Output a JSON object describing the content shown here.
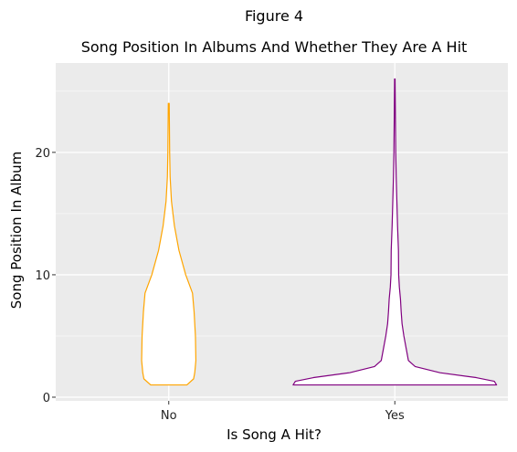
{
  "figure_label": "Figure 4",
  "chart_data": {
    "type": "violin",
    "title": "Song Position In Albums And Whether They Are A Hit",
    "xlabel": "Is Song A Hit?",
    "ylabel": "Song Position In Album",
    "categories": [
      "No",
      "Yes"
    ],
    "ylim": [
      -0.3,
      27.3
    ],
    "yticks": [
      0,
      10,
      20
    ],
    "grid": true,
    "background": "#ebebeb",
    "series": [
      {
        "category": "No",
        "color": "#ffa500",
        "fill": "#ffffff",
        "range": [
          1,
          24
        ],
        "density_profile": [
          [
            1,
            0.08
          ],
          [
            1.5,
            0.11
          ],
          [
            2,
            0.115
          ],
          [
            3,
            0.12
          ],
          [
            5,
            0.118
          ],
          [
            7,
            0.112
          ],
          [
            8.5,
            0.105
          ],
          [
            10,
            0.075
          ],
          [
            12,
            0.045
          ],
          [
            14,
            0.025
          ],
          [
            16,
            0.012
          ],
          [
            18,
            0.006
          ],
          [
            20,
            0.004
          ],
          [
            22,
            0.003
          ],
          [
            24,
            0.002
          ]
        ]
      },
      {
        "category": "Yes",
        "color": "#800080",
        "fill": "#ffffff",
        "range": [
          1,
          26
        ],
        "density_profile": [
          [
            1,
            0.45
          ],
          [
            1.3,
            0.44
          ],
          [
            1.6,
            0.36
          ],
          [
            2,
            0.2
          ],
          [
            2.5,
            0.09
          ],
          [
            3,
            0.06
          ],
          [
            4,
            0.05
          ],
          [
            5,
            0.04
          ],
          [
            6,
            0.032
          ],
          [
            7,
            0.028
          ],
          [
            8,
            0.025
          ],
          [
            9,
            0.02
          ],
          [
            10,
            0.017
          ],
          [
            12,
            0.016
          ],
          [
            14,
            0.012
          ],
          [
            16,
            0.009
          ],
          [
            18,
            0.006
          ],
          [
            20,
            0.004
          ],
          [
            22,
            0.003
          ],
          [
            24,
            0.002
          ],
          [
            26,
            0.001
          ]
        ]
      }
    ]
  }
}
